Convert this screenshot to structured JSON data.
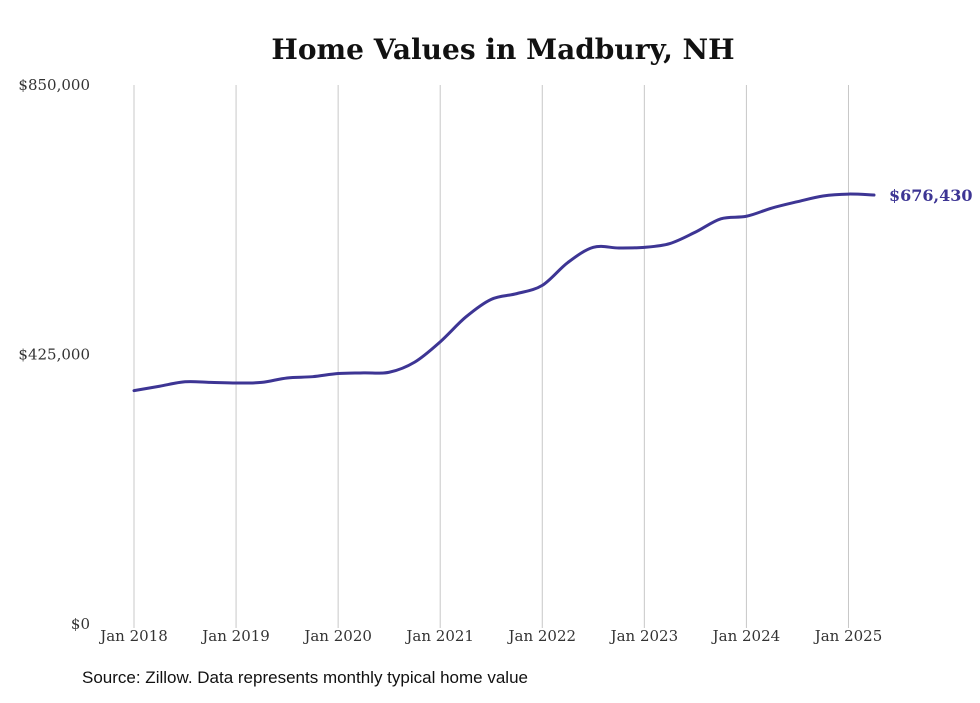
{
  "chart_data": {
    "type": "line",
    "title": "Home Values in Madbury, NH",
    "xlabel": "",
    "ylabel": "",
    "ylim": [
      0,
      850000
    ],
    "xlim": [
      "2018-01",
      "2025-04"
    ],
    "y_ticks": [
      0,
      425000,
      850000
    ],
    "y_tick_labels": [
      "$0",
      "$425,000",
      "$850,000"
    ],
    "x_ticks": [
      "2018-01",
      "2019-01",
      "2020-01",
      "2021-01",
      "2022-01",
      "2023-01",
      "2024-01",
      "2025-01"
    ],
    "x_tick_labels": [
      "Jan 2018",
      "Jan 2019",
      "Jan 2020",
      "Jan 2021",
      "Jan 2022",
      "Jan 2023",
      "Jan 2024",
      "Jan 2025"
    ],
    "grid": "vertical",
    "series": [
      {
        "color": "#3d3594",
        "end_label": "$676,430",
        "points": [
          {
            "x": "2018-01",
            "y": 368000
          },
          {
            "x": "2018-04",
            "y": 375000
          },
          {
            "x": "2018-07",
            "y": 382000
          },
          {
            "x": "2018-10",
            "y": 381000
          },
          {
            "x": "2019-01",
            "y": 380000
          },
          {
            "x": "2019-04",
            "y": 381000
          },
          {
            "x": "2019-07",
            "y": 388000
          },
          {
            "x": "2019-10",
            "y": 390000
          },
          {
            "x": "2020-01",
            "y": 395000
          },
          {
            "x": "2020-04",
            "y": 396000
          },
          {
            "x": "2020-07",
            "y": 397000
          },
          {
            "x": "2020-10",
            "y": 413000
          },
          {
            "x": "2021-01",
            "y": 445000
          },
          {
            "x": "2021-04",
            "y": 484000
          },
          {
            "x": "2021-07",
            "y": 512000
          },
          {
            "x": "2021-10",
            "y": 521000
          },
          {
            "x": "2022-01",
            "y": 534000
          },
          {
            "x": "2022-04",
            "y": 570000
          },
          {
            "x": "2022-07",
            "y": 594000
          },
          {
            "x": "2022-10",
            "y": 593000
          },
          {
            "x": "2023-01",
            "y": 594000
          },
          {
            "x": "2023-04",
            "y": 600000
          },
          {
            "x": "2023-07",
            "y": 618000
          },
          {
            "x": "2023-10",
            "y": 639000
          },
          {
            "x": "2024-01",
            "y": 643000
          },
          {
            "x": "2024-04",
            "y": 656000
          },
          {
            "x": "2024-07",
            "y": 666000
          },
          {
            "x": "2024-10",
            "y": 675000
          },
          {
            "x": "2025-01",
            "y": 678000
          },
          {
            "x": "2025-04",
            "y": 676430
          }
        ]
      }
    ]
  },
  "footer": {
    "source": "Source: Zillow. Data represents monthly typical home value"
  }
}
